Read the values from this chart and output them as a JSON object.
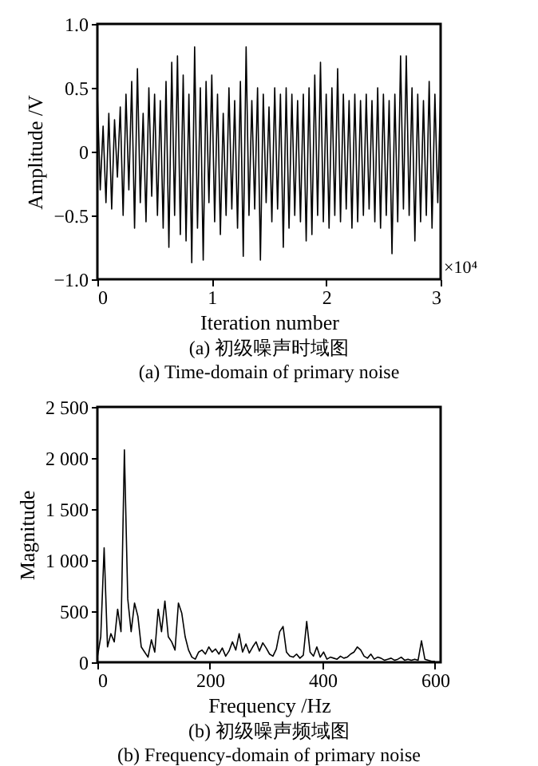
{
  "chart_data": [
    {
      "type": "line",
      "title": "(a) 初级噪声时域图",
      "subtitle": "(a) Time-domain of primary noise",
      "xlabel": "Iteration number",
      "ylabel": "Amplitude /V",
      "annotations": [
        "×10⁴"
      ],
      "xlim": [
        0,
        3
      ],
      "xticks": [
        0,
        1,
        2,
        3
      ],
      "ylim": [
        -1.0,
        1.0
      ],
      "yticks": [
        {
          "value": -1.0,
          "label": "−1.0"
        },
        {
          "value": -0.5,
          "label": "−0.5"
        },
        0,
        0.5,
        {
          "value": 1.0,
          "label": "1.0"
        }
      ],
      "grid": false,
      "marker": "none",
      "line_style": "solid",
      "series": [
        {
          "color": "#000000",
          "x": [
            0,
            0.025,
            0.05,
            0.075,
            0.1,
            0.125,
            0.15,
            0.175,
            0.2,
            0.225,
            0.25,
            0.275,
            0.3,
            0.325,
            0.35,
            0.375,
            0.4,
            0.425,
            0.45,
            0.475,
            0.5,
            0.525,
            0.55,
            0.575,
            0.6,
            0.625,
            0.65,
            0.675,
            0.7,
            0.725,
            0.75,
            0.775,
            0.8,
            0.825,
            0.85,
            0.875,
            0.9,
            0.925,
            0.95,
            0.975,
            1,
            1.025,
            1.05,
            1.075,
            1.1,
            1.125,
            1.15,
            1.175,
            1.2,
            1.225,
            1.25,
            1.275,
            1.3,
            1.325,
            1.35,
            1.375,
            1.4,
            1.425,
            1.45,
            1.475,
            1.5,
            1.525,
            1.55,
            1.575,
            1.6,
            1.625,
            1.65,
            1.675,
            1.7,
            1.725,
            1.75,
            1.775,
            1.8,
            1.825,
            1.85,
            1.875,
            1.9,
            1.925,
            1.95,
            1.975,
            2,
            2.025,
            2.05,
            2.075,
            2.1,
            2.125,
            2.15,
            2.175,
            2.2,
            2.225,
            2.25,
            2.275,
            2.3,
            2.325,
            2.35,
            2.375,
            2.4,
            2.425,
            2.45,
            2.475,
            2.5,
            2.525,
            2.55,
            2.575,
            2.6,
            2.625,
            2.65,
            2.675,
            2.7,
            2.725,
            2.75,
            2.775,
            2.8,
            2.825,
            2.85,
            2.875,
            2.9,
            2.925,
            2.95,
            2.975,
            3
          ],
          "values": [
            0.45,
            -0.3,
            0.2,
            -0.4,
            0.3,
            -0.45,
            0.25,
            -0.2,
            0.35,
            -0.5,
            0.45,
            -0.3,
            0.55,
            -0.6,
            0.65,
            -0.4,
            0.3,
            -0.55,
            0.5,
            -0.35,
            0.45,
            -0.5,
            0.4,
            -0.6,
            0.55,
            -0.75,
            0.7,
            -0.5,
            0.75,
            -0.65,
            0.6,
            -0.7,
            0.45,
            -0.87,
            0.82,
            -0.6,
            0.5,
            -0.85,
            0.55,
            -0.4,
            0.6,
            -0.55,
            0.45,
            -0.65,
            0.3,
            -0.5,
            0.5,
            -0.45,
            0.4,
            -0.6,
            0.55,
            -0.82,
            0.82,
            -0.5,
            0.4,
            -0.45,
            0.5,
            -0.85,
            0.45,
            -0.4,
            0.35,
            -0.55,
            0.5,
            -0.45,
            0.45,
            -0.75,
            0.5,
            -0.6,
            0.45,
            -0.5,
            0.4,
            -0.55,
            0.45,
            -0.7,
            0.5,
            -0.65,
            0.6,
            -0.5,
            0.7,
            -0.55,
            0.45,
            -0.6,
            0.5,
            -0.5,
            0.65,
            -0.55,
            0.45,
            -0.45,
            0.4,
            -0.6,
            0.45,
            -0.55,
            0.4,
            -0.5,
            0.45,
            -0.45,
            0.4,
            -0.55,
            0.5,
            -0.6,
            0.45,
            -0.5,
            0.4,
            -0.8,
            0.45,
            -0.55,
            0.75,
            -0.45,
            0.75,
            -0.5,
            0.5,
            -0.7,
            0.45,
            -0.55,
            0.4,
            -0.5,
            0.55,
            -0.6,
            0.45,
            -0.4,
            0.5
          ]
        }
      ]
    },
    {
      "type": "line",
      "title": "(b) 初级噪声频域图",
      "subtitle": "(b) Frequency-domain of primary noise",
      "xlabel": "Frequency /Hz",
      "ylabel": "Magnitude",
      "xlim": [
        0,
        610
      ],
      "xticks": [
        0,
        200,
        400,
        600
      ],
      "ylim": [
        0,
        2500
      ],
      "yticks": [
        0,
        500,
        {
          "value": 1000,
          "label": "1 000"
        },
        {
          "value": 1500,
          "label": "1 500"
        },
        {
          "value": 2000,
          "label": "2 000"
        },
        {
          "value": 2500,
          "label": "2 500"
        }
      ],
      "grid": false,
      "marker": "none",
      "line_style": "solid",
      "series": [
        {
          "color": "#000000",
          "x": [
            0,
            6,
            12,
            18,
            24,
            30,
            36,
            42,
            48,
            54,
            60,
            66,
            72,
            78,
            84,
            90,
            96,
            102,
            108,
            114,
            120,
            126,
            132,
            138,
            144,
            150,
            156,
            162,
            168,
            174,
            180,
            186,
            192,
            198,
            204,
            210,
            216,
            222,
            228,
            234,
            240,
            246,
            252,
            258,
            264,
            270,
            276,
            282,
            288,
            294,
            300,
            306,
            312,
            318,
            324,
            330,
            336,
            342,
            348,
            354,
            360,
            366,
            372,
            378,
            384,
            390,
            396,
            402,
            408,
            414,
            420,
            426,
            432,
            438,
            444,
            450,
            456,
            462,
            468,
            474,
            480,
            486,
            492,
            498,
            504,
            510,
            516,
            522,
            528,
            534,
            540,
            546,
            552,
            558,
            564,
            570,
            576,
            582,
            588,
            594,
            600
          ],
          "values": [
            50,
            250,
            1120,
            150,
            280,
            200,
            520,
            300,
            2080,
            620,
            300,
            580,
            450,
            150,
            100,
            50,
            220,
            100,
            520,
            300,
            600,
            250,
            200,
            120,
            580,
            480,
            250,
            120,
            50,
            30,
            100,
            120,
            80,
            150,
            100,
            130,
            80,
            140,
            60,
            110,
            200,
            120,
            280,
            100,
            180,
            90,
            150,
            200,
            110,
            190,
            140,
            80,
            60,
            130,
            300,
            350,
            100,
            60,
            50,
            80,
            40,
            70,
            400,
            100,
            60,
            150,
            50,
            100,
            30,
            50,
            40,
            30,
            60,
            40,
            50,
            80,
            100,
            150,
            120,
            60,
            40,
            80,
            30,
            50,
            40,
            20,
            30,
            40,
            20,
            30,
            50,
            20,
            30,
            20,
            30,
            20,
            210,
            30,
            20,
            10,
            10
          ]
        }
      ]
    }
  ]
}
